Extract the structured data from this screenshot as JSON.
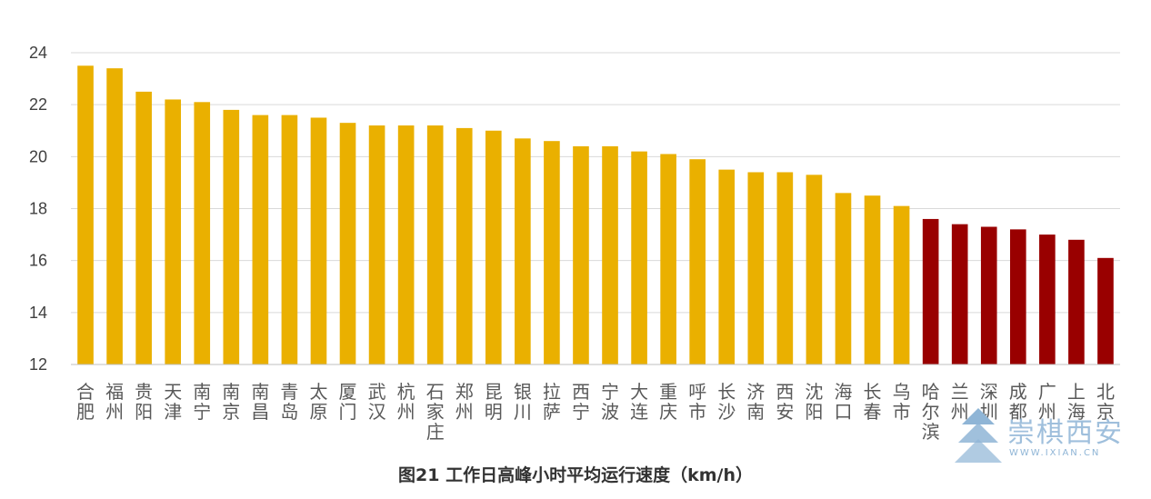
{
  "chart_data": {
    "type": "bar",
    "title": "图21 工作日高峰小时平均运行速度（km/h）",
    "ylim": [
      12,
      24
    ],
    "yticks": [
      12,
      14,
      16,
      18,
      20,
      22,
      24
    ],
    "grid": true,
    "categories": [
      "合肥",
      "福州",
      "贵阳",
      "天津",
      "南宁",
      "南京",
      "南昌",
      "青岛",
      "太原",
      "厦门",
      "武汉",
      "杭州",
      "石家庄",
      "郑州",
      "昆明",
      "银川",
      "拉萨",
      "西宁",
      "宁波",
      "大连",
      "重庆",
      "呼市",
      "长沙",
      "济南",
      "西安",
      "沈阳",
      "海口",
      "长春",
      "乌市",
      "哈尔滨",
      "兰州",
      "深圳",
      "成都",
      "广州",
      "上海",
      "北京"
    ],
    "values": [
      23.5,
      23.4,
      22.5,
      22.2,
      22.1,
      21.8,
      21.6,
      21.6,
      21.5,
      21.3,
      21.2,
      21.2,
      21.2,
      21.1,
      21.0,
      20.7,
      20.6,
      20.4,
      20.4,
      20.2,
      20.1,
      19.9,
      19.5,
      19.4,
      19.4,
      19.3,
      18.6,
      18.5,
      18.1,
      17.6,
      17.4,
      17.3,
      17.2,
      17.0,
      16.8,
      16.1
    ],
    "highlight_from_index": 29,
    "colors": {
      "normal": "#EAB000",
      "highlight": "#990000",
      "grid": "#D9D9D9"
    }
  },
  "watermark": {
    "text": "崇棋西安",
    "url": "WWW.IXIAN.CN",
    "icon": "building-icon"
  }
}
